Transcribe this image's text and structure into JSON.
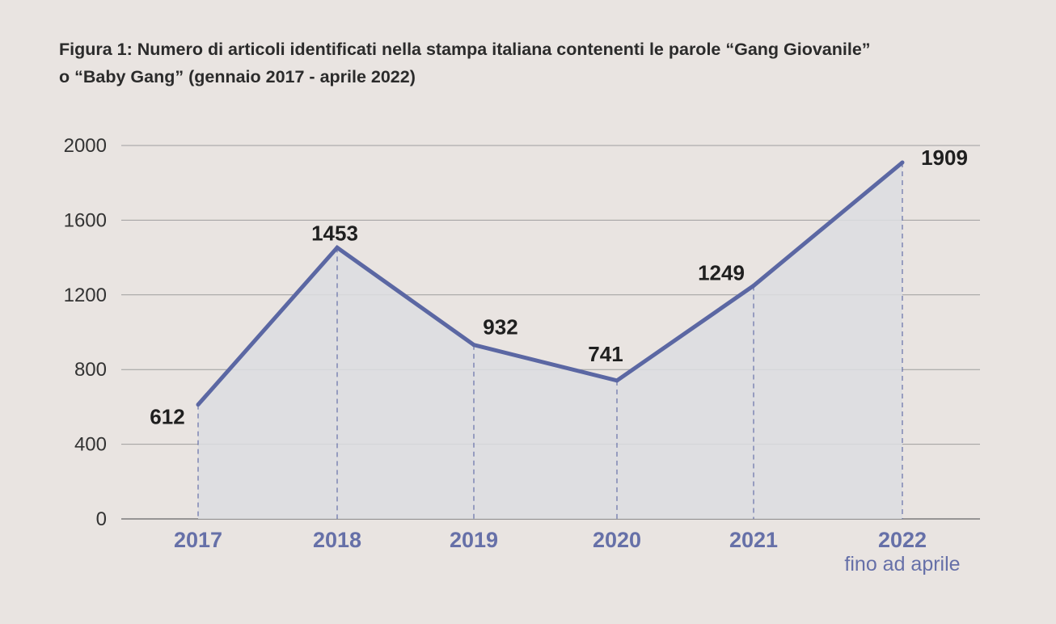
{
  "title_line1": "Figura 1: Numero di articoli identificati nella stampa italiana contenenti le parole “Gang Giovanile”",
  "title_line2": "o “Baby Gang” (gennaio 2017 - aprile 2022)",
  "colors": {
    "background": "#e9e4e1",
    "line": "#5b67a3",
    "area": "#dcdde1",
    "category_text": "#6670a8",
    "note_text": "#6670a8",
    "grid": "#9e9e9e"
  },
  "chart_data": {
    "type": "area",
    "categories": [
      "2017",
      "2018",
      "2019",
      "2020",
      "2021",
      "2022"
    ],
    "category_notes": [
      "",
      "",
      "",
      "",
      "",
      "fino ad aprile"
    ],
    "values": [
      612,
      1453,
      932,
      741,
      1249,
      1909
    ],
    "data_labels": [
      "612",
      "1453",
      "932",
      "741",
      "1249",
      "1909"
    ],
    "ylim": [
      0,
      2000
    ],
    "yticks": [
      0,
      400,
      800,
      1200,
      1600,
      2000
    ],
    "grid": "horizontal",
    "drop_lines": "dashed",
    "legend": "none"
  }
}
